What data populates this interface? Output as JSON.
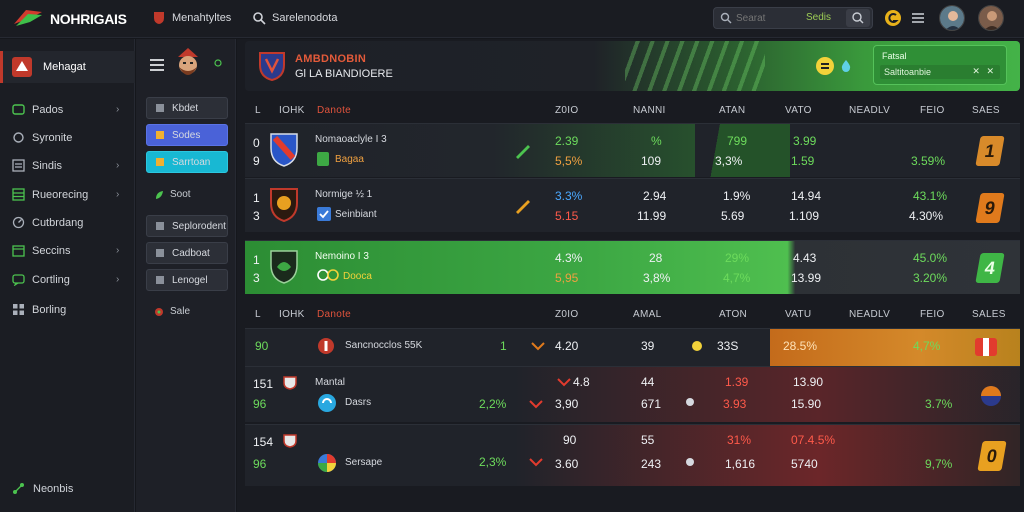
{
  "app": {
    "brand": "NOHRIGAIS"
  },
  "topnav": [
    {
      "label": "Menahtyltes",
      "icon": "shield-icon"
    },
    {
      "label": "Sarelenodota",
      "icon": "search-icon"
    }
  ],
  "search": {
    "placeholder": "Searat",
    "tag": "Sedis"
  },
  "colors": {
    "accent": "#45b34a",
    "red": "#e0533c",
    "orange": "#f0a040",
    "blue": "#4a62d8",
    "cyan": "#18b8d3"
  },
  "sidebar": {
    "header": "Mehagat",
    "items": [
      {
        "label": "Pados",
        "icon": "tag-icon",
        "chevron": true
      },
      {
        "label": "Syronite",
        "icon": "refresh-icon",
        "chevron": false
      },
      {
        "label": "Sindis",
        "icon": "list-icon",
        "chevron": true
      },
      {
        "label": "Rueorecing",
        "icon": "table-icon",
        "chevron": true
      },
      {
        "label": "Cutbrdang",
        "icon": "gauge-icon",
        "chevron": false
      },
      {
        "label": "Seccins",
        "icon": "calendar-icon",
        "chevron": true
      },
      {
        "label": "Cortling",
        "icon": "chat-icon",
        "chevron": true
      },
      {
        "label": "Borling",
        "icon": "grid-icon",
        "chevron": false
      }
    ],
    "footer": "Neonbis"
  },
  "col2": {
    "buttons": [
      {
        "label": "Kbdet",
        "style": "plain"
      },
      {
        "label": "Sodes",
        "style": "blue"
      },
      {
        "label": "Sarrtoan",
        "style": "cyan"
      }
    ],
    "link1": "Soot",
    "buttons2": [
      "Seplorodent",
      "Cadboat",
      "Lenogel"
    ],
    "link2": "Sale"
  },
  "banner": {
    "title": "AMBDNOBIN",
    "subtitle": "Gl LA BIANDIOERE"
  },
  "promo": {
    "title": "Fatsal",
    "input": "Saltitoanbie",
    "close": "✕ ✕"
  },
  "table1": {
    "headers": {
      "rank": "L",
      "code": "IOHK",
      "name": "Danote",
      "c1": "Z0IO",
      "c2": "NANNI",
      "c3": "ATAN",
      "c4": "VATO",
      "c5": "NEADLV",
      "c6": "FEIO",
      "c7": "SAES"
    },
    "rows": [
      {
        "rank": "0",
        "rank2": "9",
        "name": "Nomaoaclyle I 3",
        "sub": "Bagaa",
        "v1": "2.39",
        "v1b": "5,5%",
        "v2": "%",
        "v2b": "109",
        "v3": "799",
        "v3b": "3,3%",
        "v4": "3.99",
        "v4b": "1.59",
        "v6": "3.59%",
        "pos": "1"
      },
      {
        "rank": "1",
        "rank2": "3",
        "name": "Normige ½ 1",
        "sub": "Seinbiant",
        "v1": "3.3%",
        "v1b": "5.15",
        "v2": "2.94",
        "v2b": "11.99",
        "v3": "1.9%",
        "v3b": "5.69",
        "v4": "14.94",
        "v4b": "1.109",
        "v6": "43.1%",
        "v6b": "4.30%",
        "pos": "9"
      },
      {
        "rank": "1",
        "rank2": "3",
        "name": "Nemoino I 3",
        "sub": "Dooca",
        "v1": "4.3%",
        "v1b": "5,95",
        "v2": "28",
        "v2b": "3,8%",
        "v3": "29%",
        "v3b": "4,7%",
        "v4": "4.43",
        "v4b": "13.99",
        "v6": "45.0%",
        "v6b": "3.20%",
        "pos": "4"
      }
    ]
  },
  "table2": {
    "headers": {
      "rank": "L",
      "code": "IOHK",
      "name": "Danote",
      "c1": "Z0IO",
      "c2": "AMAL",
      "c3": "ATON",
      "c4": "VATU",
      "c5": "NEADLV",
      "c6": "FEIO",
      "c7": "SALES"
    },
    "rows": [
      {
        "rank": "90",
        "name": "Sancnocclos 55K",
        "count": "1",
        "v1": "4.20",
        "v2": "39",
        "v3": "33S",
        "v4": "28.5%",
        "v6": "4,7%"
      },
      {
        "rank": "151",
        "rank2": "96",
        "label": "Mantal",
        "name": "Dasrs",
        "pct": "2,2%",
        "v1": "4.8",
        "v1b": "3,90",
        "v2": "44",
        "v2b": "671",
        "v3": "1.39",
        "v3b": "3.93",
        "v4": "13.90",
        "v4b": "15.90",
        "v6": "3.7%"
      },
      {
        "rank": "154",
        "rank2": "96",
        "name": "Sersape",
        "pct": "2,3%",
        "v1": "90",
        "v1b": "3.60",
        "v2": "55",
        "v2b": "243",
        "v3": "31%",
        "v3b": "1,616",
        "v4": "07.4.5%",
        "v4b": "5740",
        "v6": "9,7%",
        "pos": "0"
      }
    ]
  }
}
